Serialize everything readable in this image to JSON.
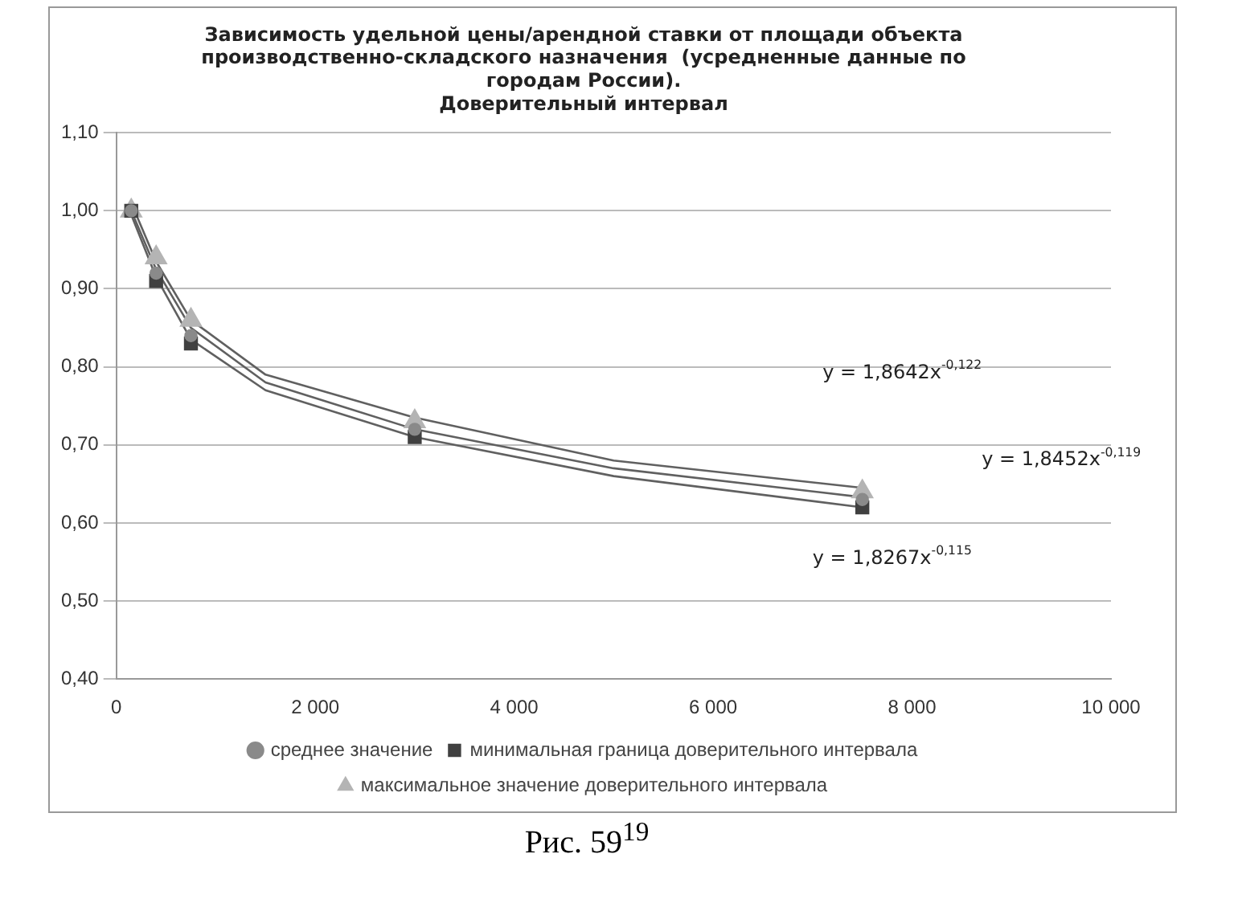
{
  "chart_data": {
    "type": "scatter",
    "title": "Зависимость удельной цены/арендной ставки от площади объекта\nпроизводственно-складского назначения  (усредненные данные по\nгородам России).\nДоверительный интервал",
    "x": [
      150,
      400,
      750,
      3000,
      7500
    ],
    "series": [
      {
        "name": "среднее значение",
        "color": "#8a8a8a",
        "marker": "circle",
        "values": [
          1.0,
          0.92,
          0.84,
          0.72,
          0.63
        ]
      },
      {
        "name": "минимальная граница доверительного интервала",
        "color": "#404040",
        "marker": "square",
        "values": [
          1.0,
          0.91,
          0.83,
          0.71,
          0.62
        ]
      },
      {
        "name": "максимальное значение доверительного интервала",
        "color": "#b4b4b4",
        "marker": "triangle",
        "values": [
          1.0,
          0.94,
          0.86,
          0.73,
          0.64
        ]
      },
      {
        "type": "line",
        "color": "#606060",
        "marker": "none",
        "x": [
          150,
          400,
          750,
          1500,
          3000,
          5000,
          7500
        ],
        "values": [
          1.01,
          0.935,
          0.86,
          0.79,
          0.735,
          0.68,
          0.645
        ]
      },
      {
        "type": "line",
        "color": "#606060",
        "marker": "none",
        "x": [
          150,
          400,
          750,
          1500,
          3000,
          5000,
          7500
        ],
        "values": [
          1.0,
          0.925,
          0.85,
          0.78,
          0.72,
          0.67,
          0.633
        ]
      },
      {
        "type": "line",
        "color": "#606060",
        "marker": "none",
        "x": [
          150,
          400,
          750,
          1500,
          3000,
          5000,
          7500
        ],
        "values": [
          0.995,
          0.915,
          0.835,
          0.77,
          0.71,
          0.66,
          0.62
        ]
      }
    ],
    "xlim": [
      0,
      10000
    ],
    "xticks": [
      0,
      {
        "value": 2000,
        "label": "2 000"
      },
      {
        "value": 4000,
        "label": "4 000"
      },
      {
        "value": 6000,
        "label": "6 000"
      },
      {
        "value": 8000,
        "label": "8 000"
      },
      {
        "value": 10000,
        "label": "10 000"
      }
    ],
    "ylim": [
      0.4,
      1.1
    ],
    "yticks": [
      {
        "value": 0.4,
        "label": "0,40"
      },
      {
        "value": 0.5,
        "label": "0,50"
      },
      {
        "value": 0.6,
        "label": "0,60"
      },
      {
        "value": 0.7,
        "label": "0,70"
      },
      {
        "value": 0.8,
        "label": "0,80"
      },
      {
        "value": 0.9,
        "label": "0,90"
      },
      {
        "value": 1.0,
        "label": "1,00"
      },
      {
        "value": 1.1,
        "label": "1,10"
      }
    ],
    "grid": "y",
    "legend": "bottom",
    "annotations": [
      "y = 1,8642x$^{-0,122}$",
      "y = 1,8452x$^{-0,119}$",
      "y = 1,8267x$^{-0,115}$",
      "Рис. 59$^{19}$"
    ]
  }
}
